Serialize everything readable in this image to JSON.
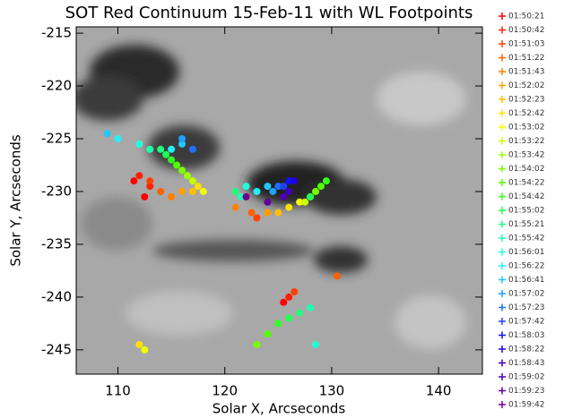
{
  "chart_data": {
    "type": "scatter",
    "title": "SOT Red Continuum 15-Feb-11 with WL Footpoints",
    "xlabel": "Solar X, Arcseconds",
    "ylabel": "Solar Y, Arcseconds",
    "xlim": [
      106.1,
      144.1
    ],
    "ylim": [
      -247.3,
      -214.4
    ],
    "xticks": [
      110,
      120,
      130,
      140
    ],
    "yticks": [
      -245,
      -240,
      -235,
      -230,
      -225,
      -220,
      -215
    ],
    "series": [
      {
        "name": "01:50:21",
        "color": "#ff0000",
        "x": [
          111.5,
          112.5,
          125.5
        ],
        "y": [
          -229,
          -230.5,
          -240.5
        ]
      },
      {
        "name": "01:50:42",
        "color": "#ff2000",
        "x": [
          112,
          113,
          126
        ],
        "y": [
          -228.5,
          -229.5,
          -240
        ]
      },
      {
        "name": "01:51:03",
        "color": "#ff4000",
        "x": [
          113,
          123,
          126.5
        ],
        "y": [
          -229,
          -232.5,
          -239.5
        ]
      },
      {
        "name": "01:51:22",
        "color": "#ff6000",
        "x": [
          114,
          122.5,
          130.5
        ],
        "y": [
          -230,
          -232,
          -238
        ]
      },
      {
        "name": "01:51:43",
        "color": "#ff8000",
        "x": [
          115,
          121
        ],
        "y": [
          -230.5,
          -231.5
        ]
      },
      {
        "name": "01:52:02",
        "color": "#ffa000",
        "x": [
          116,
          124
        ],
        "y": [
          -230,
          -232
        ]
      },
      {
        "name": "01:52:23",
        "color": "#ffc000",
        "x": [
          117,
          125
        ],
        "y": [
          -230,
          -232
        ]
      },
      {
        "name": "01:52:42",
        "color": "#ffe000",
        "x": [
          117.5,
          126,
          112
        ],
        "y": [
          -229.5,
          -231.5,
          -244.5
        ]
      },
      {
        "name": "01:53:02",
        "color": "#f0ff00",
        "x": [
          118,
          127,
          112.5
        ],
        "y": [
          -230,
          -231,
          -245
        ]
      },
      {
        "name": "01:53:22",
        "color": "#c8ff00",
        "x": [
          117,
          127.5
        ],
        "y": [
          -229,
          -231
        ]
      },
      {
        "name": "01:53:42",
        "color": "#a0ff00",
        "x": [
          116.5,
          128
        ],
        "y": [
          -228.5,
          -230.5
        ]
      },
      {
        "name": "01:54:02",
        "color": "#78ff00",
        "x": [
          116,
          128.5,
          123
        ],
        "y": [
          -228,
          -230,
          -244.5
        ]
      },
      {
        "name": "01:54:22",
        "color": "#50ff00",
        "x": [
          115.5,
          129,
          124
        ],
        "y": [
          -227.5,
          -229.5,
          -243.5
        ]
      },
      {
        "name": "01:54:42",
        "color": "#30ff20",
        "x": [
          115,
          129.5,
          125
        ],
        "y": [
          -227,
          -229,
          -242.5
        ]
      },
      {
        "name": "01:55:02",
        "color": "#20ff50",
        "x": [
          114.5,
          128,
          126
        ],
        "y": [
          -226.5,
          -230.5,
          -242
        ]
      },
      {
        "name": "01:55:21",
        "color": "#20ff80",
        "x": [
          114,
          121,
          127
        ],
        "y": [
          -226,
          -230,
          -241.5
        ]
      },
      {
        "name": "01:55:42",
        "color": "#20ffb0",
        "x": [
          113,
          121.5,
          128
        ],
        "y": [
          -226,
          -230.5,
          -241
        ]
      },
      {
        "name": "01:56:01",
        "color": "#20ffd8",
        "x": [
          112,
          122,
          128.5
        ],
        "y": [
          -225.5,
          -229.5,
          -244.5
        ]
      },
      {
        "name": "01:56:22",
        "color": "#20f0ff",
        "x": [
          110,
          115,
          123
        ],
        "y": [
          -225,
          -226,
          -230
        ]
      },
      {
        "name": "01:56:41",
        "color": "#20c8ff",
        "x": [
          109,
          116,
          124
        ],
        "y": [
          -224.5,
          -225.5,
          -229.5
        ]
      },
      {
        "name": "01:57:02",
        "color": "#20a0ff",
        "x": [
          124.5,
          116
        ],
        "y": [
          -230,
          -225
        ]
      },
      {
        "name": "01:57:23",
        "color": "#2070ff",
        "x": [
          125,
          117
        ],
        "y": [
          -229.5,
          -226
        ]
      },
      {
        "name": "01:57:42",
        "color": "#2040ff",
        "x": [
          125.5
        ],
        "y": [
          -229.5
        ]
      },
      {
        "name": "01:58:03",
        "color": "#1010ff",
        "x": [
          126
        ],
        "y": [
          -229
        ]
      },
      {
        "name": "01:58:22",
        "color": "#2000e0",
        "x": [
          126.5
        ],
        "y": [
          -229
        ]
      },
      {
        "name": "01:58:43",
        "color": "#4000c0",
        "x": [
          126
        ],
        "y": [
          -230
        ]
      },
      {
        "name": "01:59:02",
        "color": "#5000b0",
        "x": [
          125.5
        ],
        "y": [
          -230.5
        ]
      },
      {
        "name": "01:59:23",
        "color": "#6000a0",
        "x": [
          124
        ],
        "y": [
          -231
        ]
      },
      {
        "name": "01:59:42",
        "color": "#700090",
        "x": [
          122
        ],
        "y": [
          -230.5
        ]
      }
    ]
  }
}
